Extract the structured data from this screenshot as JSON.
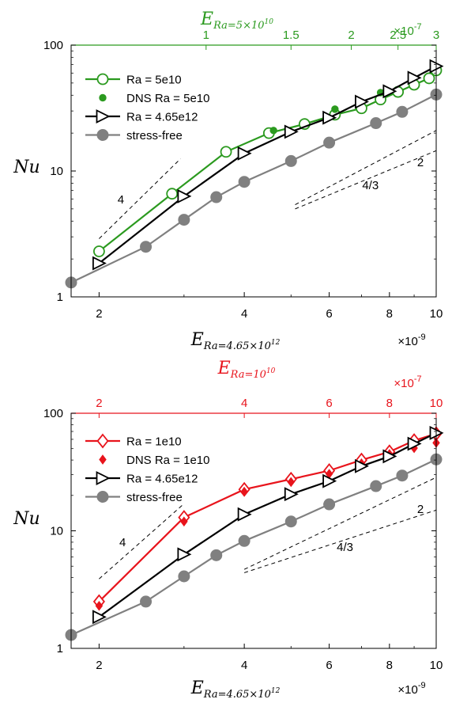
{
  "chart_data": [
    {
      "type": "line",
      "xscale": "log",
      "yscale": "log",
      "x_bottom": {
        "label_base": "E",
        "label_sub": "Ra=4.65×10",
        "label_sup": "12",
        "multiplier_base": "×10",
        "multiplier_exp": "-9",
        "range": [
          1.75,
          10
        ],
        "ticks": [
          2,
          4,
          6,
          8,
          10
        ],
        "tick_labels": [
          "2",
          "4",
          "6",
          "8",
          "10"
        ]
      },
      "x_top": {
        "label_base": "E",
        "label_sub": "Ra=5×10",
        "label_sup": "10",
        "multiplier_base": "×10",
        "multiplier_exp": "-7",
        "ticks": [
          1,
          1.5,
          2,
          2.5,
          3
        ],
        "tick_labels": [
          "1",
          "1.5",
          "2",
          "2.5",
          "3"
        ],
        "color": "#2b9a1f"
      },
      "y": {
        "label": "Nu",
        "range": [
          1,
          100
        ],
        "ticks": [
          1,
          10,
          100
        ],
        "tick_labels": [
          "1",
          "10",
          "100"
        ]
      },
      "series": [
        {
          "name": "Ra = 5e10",
          "color": "#2b9a1f",
          "marker": "open-circle",
          "axis": "top",
          "x": [
            0.6,
            0.85,
            1.1,
            1.35,
            1.6,
            1.85,
            2.1,
            2.3,
            2.5,
            2.7,
            2.9,
            3.0
          ],
          "y": [
            2.3,
            6.6,
            14.2,
            20.0,
            23.6,
            28.0,
            31.5,
            37.0,
            42.5,
            48.5,
            54.5,
            63.0
          ]
        },
        {
          "name": "DNS Ra = 5e10",
          "color": "#2b9a1f",
          "marker": "filled-circle",
          "axis": "top",
          "line": false,
          "x": [
            1.38,
            1.85,
            2.3
          ],
          "y": [
            21.0,
            31.0,
            42.0
          ]
        },
        {
          "name": "Ra = 4.65e12",
          "color": "#000000",
          "marker": "open-triangle-right",
          "axis": "bottom",
          "x": [
            2,
            3,
            4,
            5,
            6,
            7,
            8,
            9,
            10
          ],
          "y": [
            1.85,
            6.3,
            13.8,
            20.5,
            26.5,
            35.5,
            43.0,
            55.0,
            68.0
          ]
        },
        {
          "name": "stress-free",
          "color": "#808080",
          "marker": "filled-circle",
          "axis": "bottom",
          "x": [
            1.75,
            2.5,
            3.0,
            3.5,
            4.0,
            5.0,
            6.0,
            7.5,
            8.5,
            10.0
          ],
          "y": [
            1.3,
            2.5,
            4.1,
            6.2,
            8.2,
            12.0,
            16.8,
            24.0,
            29.5,
            40.5
          ]
        }
      ],
      "scaling_lines": [
        {
          "label": "4",
          "x": [
            2.0,
            2.95
          ],
          "y": [
            2.9,
            12.5
          ]
        },
        {
          "label": "2",
          "x": [
            5.1,
            10.0
          ],
          "y": [
            5.4,
            21.0
          ]
        },
        {
          "label": "4/3",
          "x": [
            5.1,
            10.0
          ],
          "y": [
            5.0,
            14.5
          ]
        }
      ],
      "legend": "top-left"
    },
    {
      "type": "line",
      "xscale": "log",
      "yscale": "log",
      "x_bottom": {
        "label_base": "E",
        "label_sub": "Ra=4.65×10",
        "label_sup": "12",
        "multiplier_base": "×10",
        "multiplier_exp": "-9",
        "range": [
          1.75,
          10
        ],
        "ticks": [
          2,
          4,
          6,
          8,
          10
        ],
        "tick_labels": [
          "2",
          "4",
          "6",
          "8",
          "10"
        ]
      },
      "x_top": {
        "label_base": "E",
        "label_sub": "Ra=10",
        "label_sup": "10",
        "multiplier_base": "×10",
        "multiplier_exp": "-7",
        "ticks": [
          2,
          4,
          6,
          8,
          10
        ],
        "tick_labels": [
          "2",
          "4",
          "6",
          "8",
          "10"
        ],
        "color": "#e8141c"
      },
      "y": {
        "label": "Nu",
        "range": [
          1,
          100
        ],
        "ticks": [
          1,
          10,
          100
        ],
        "tick_labels": [
          "1",
          "10",
          "100"
        ]
      },
      "series": [
        {
          "name": "Ra = 1e10",
          "color": "#e8141c",
          "marker": "open-diamond",
          "axis": "bottom",
          "x": [
            2,
            3,
            4,
            5,
            6,
            7,
            8,
            9,
            10
          ],
          "y": [
            2.5,
            13.0,
            22.5,
            27.5,
            32.5,
            40.0,
            47.0,
            58.5,
            67.0
          ]
        },
        {
          "name": "DNS Ra = 1e10",
          "color": "#e8141c",
          "marker": "filled-diamond",
          "axis": "bottom",
          "line": false,
          "x": [
            2,
            3,
            4,
            5,
            6,
            7,
            8,
            9,
            10
          ],
          "y": [
            2.3,
            12.0,
            21.5,
            26.0,
            30.5,
            37.5,
            45.0,
            50.5,
            56.0
          ]
        },
        {
          "name": "Ra = 4.65e12",
          "color": "#000000",
          "marker": "open-triangle-right",
          "axis": "bottom",
          "x": [
            2,
            3,
            4,
            5,
            6,
            7,
            8,
            9,
            10
          ],
          "y": [
            1.85,
            6.3,
            13.8,
            20.5,
            26.5,
            35.5,
            43.0,
            55.0,
            68.0
          ]
        },
        {
          "name": "stress-free",
          "color": "#808080",
          "marker": "filled-circle",
          "axis": "bottom",
          "x": [
            1.75,
            2.5,
            3.0,
            3.5,
            4.0,
            5.0,
            6.0,
            7.5,
            8.5,
            10.0
          ],
          "y": [
            1.3,
            2.5,
            4.1,
            6.2,
            8.2,
            12.0,
            16.8,
            24.0,
            29.5,
            40.5
          ]
        }
      ],
      "scaling_lines": [
        {
          "label": "4",
          "x": [
            2.0,
            3.0
          ],
          "y": [
            3.9,
            17.0
          ]
        },
        {
          "label": "2",
          "x": [
            4.0,
            10.0
          ],
          "y": [
            4.7,
            28.5
          ]
        },
        {
          "label": "4/3",
          "x": [
            4.0,
            10.0
          ],
          "y": [
            4.4,
            15.0
          ]
        }
      ],
      "legend": "top-left"
    }
  ]
}
